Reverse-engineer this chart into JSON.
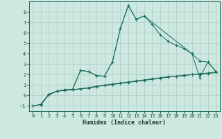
{
  "title": "",
  "xlabel": "Humidex (Indice chaleur)",
  "bg_color": "#cce8e0",
  "grid_color": "#aaccc4",
  "line_color": "#1a6a5a",
  "xlim": [
    -0.5,
    23.5
  ],
  "ylim": [
    -1.5,
    9.0
  ],
  "xticks": [
    0,
    1,
    2,
    3,
    4,
    5,
    6,
    7,
    8,
    9,
    10,
    11,
    12,
    13,
    14,
    15,
    16,
    17,
    18,
    19,
    20,
    21,
    22,
    23
  ],
  "yticks": [
    -1,
    0,
    1,
    2,
    3,
    4,
    5,
    6,
    7,
    8
  ],
  "curve_big_x": [
    1,
    2,
    3,
    4,
    5,
    6,
    7,
    8,
    9,
    10,
    11,
    12,
    13,
    14,
    15,
    16,
    17,
    18,
    19,
    20,
    21,
    22,
    23
  ],
  "curve_big_y": [
    -0.9,
    0.1,
    0.4,
    0.55,
    0.6,
    2.4,
    2.3,
    1.9,
    1.85,
    3.2,
    6.4,
    8.6,
    7.3,
    7.6,
    6.8,
    5.8,
    5.2,
    4.8,
    4.5,
    4.0,
    3.3,
    3.2,
    2.3
  ],
  "curve_med_x": [
    1,
    2,
    3,
    4,
    5,
    6,
    7,
    8,
    9,
    10,
    11,
    12,
    13,
    14,
    20,
    21,
    22,
    23
  ],
  "curve_med_y": [
    -0.9,
    0.1,
    0.4,
    0.55,
    0.6,
    2.4,
    2.3,
    1.9,
    1.85,
    3.2,
    6.4,
    8.6,
    7.3,
    7.6,
    4.0,
    1.7,
    3.2,
    2.3
  ],
  "curve_lin1_x": [
    0,
    1,
    2,
    3,
    4,
    5,
    6,
    7,
    8,
    9,
    10,
    11,
    12,
    13,
    14,
    15,
    16,
    17,
    18,
    19,
    20,
    21,
    22,
    23
  ],
  "curve_lin1_y": [
    -1.0,
    -0.85,
    0.1,
    0.4,
    0.5,
    0.55,
    0.65,
    0.7,
    0.85,
    0.95,
    1.05,
    1.15,
    1.25,
    1.35,
    1.45,
    1.55,
    1.65,
    1.75,
    1.85,
    1.9,
    2.0,
    2.05,
    2.1,
    2.2
  ],
  "curve_lin2_x": [
    0,
    1,
    2,
    3,
    4,
    5,
    6,
    7,
    8,
    9,
    10,
    11,
    12,
    13,
    14,
    15,
    16,
    17,
    18,
    19,
    20,
    21,
    22,
    23
  ],
  "curve_lin2_y": [
    -1.0,
    -0.85,
    0.1,
    0.4,
    0.5,
    0.55,
    0.65,
    0.75,
    0.9,
    1.0,
    1.1,
    1.2,
    1.3,
    1.4,
    1.5,
    1.6,
    1.7,
    1.8,
    1.85,
    1.95,
    2.0,
    2.1,
    2.15,
    2.25
  ]
}
